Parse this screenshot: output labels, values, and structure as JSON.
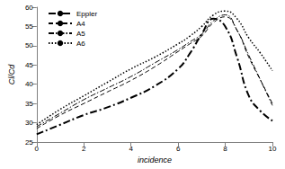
{
  "chart_data": {
    "type": "line",
    "x_label": "incidence",
    "y_label": "Cl/Cd",
    "x": [
      0,
      1,
      2,
      3,
      4,
      5,
      6,
      6.5,
      7,
      7.5,
      8,
      8.5,
      9,
      9.5,
      10
    ],
    "series": [
      {
        "name": "Eppler",
        "color": "#000000",
        "line_style": "dashdot",
        "values": [
          27,
          29.5,
          32,
          34,
          36.5,
          39.5,
          44,
          48,
          53,
          57,
          55,
          47,
          37,
          33,
          30.5
        ]
      },
      {
        "name": "A4",
        "color": "#000000",
        "line_style": "dashed",
        "values": [
          28.5,
          32,
          35,
          38,
          41,
          44.5,
          48.5,
          50.5,
          52.5,
          56,
          57.5,
          54,
          47,
          41,
          35
        ]
      },
      {
        "name": "A5",
        "color": "#000000",
        "line_style": "longdashdot",
        "values": [
          29,
          32.5,
          36,
          39,
          42,
          45.5,
          49,
          51,
          53,
          56.5,
          58,
          54,
          47.5,
          41,
          34.5
        ]
      },
      {
        "name": "A6",
        "color": "#000000",
        "line_style": "dotted",
        "values": [
          29.5,
          33.5,
          37,
          40.5,
          44,
          47,
          50.5,
          52.5,
          55,
          58,
          59,
          57,
          52,
          48,
          43.5
        ]
      }
    ],
    "xlim": [
      0,
      10
    ],
    "xticks": [
      0,
      2,
      4,
      6,
      8,
      10
    ],
    "ylim": [
      25,
      60
    ],
    "yticks": [
      25,
      30,
      35,
      40,
      45,
      50,
      55,
      60
    ],
    "grid": false,
    "legend": "top-left"
  }
}
